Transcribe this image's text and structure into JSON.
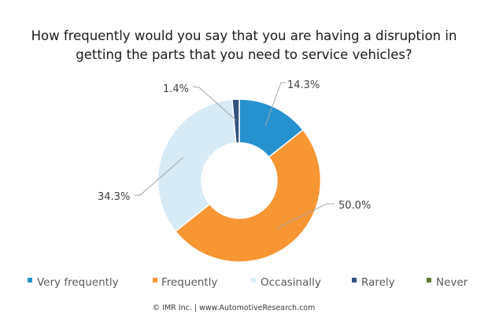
{
  "chart_data": {
    "type": "pie",
    "variant": "donut",
    "title_lines": [
      "How frequently would you say that you are having a disruption in",
      "getting the parts that you need to service vehicles?"
    ],
    "categories": [
      "Very frequently",
      "Frequently",
      "Occasinally",
      "Rarely",
      "Never"
    ],
    "values": [
      14.3,
      50.0,
      34.3,
      1.4,
      0.0
    ],
    "data_labels": [
      "14.3%",
      "50.0%",
      "34.3%",
      "1.4%",
      ""
    ],
    "colors": [
      "#2591CF",
      "#F79633",
      "#D6EBF5",
      "#35537F",
      "#5C7A2E"
    ],
    "legend_position": "bottom",
    "start": "12 o'clock, clockwise",
    "footer": "© IMR Inc. | www.AutomotiveResearch.com"
  }
}
